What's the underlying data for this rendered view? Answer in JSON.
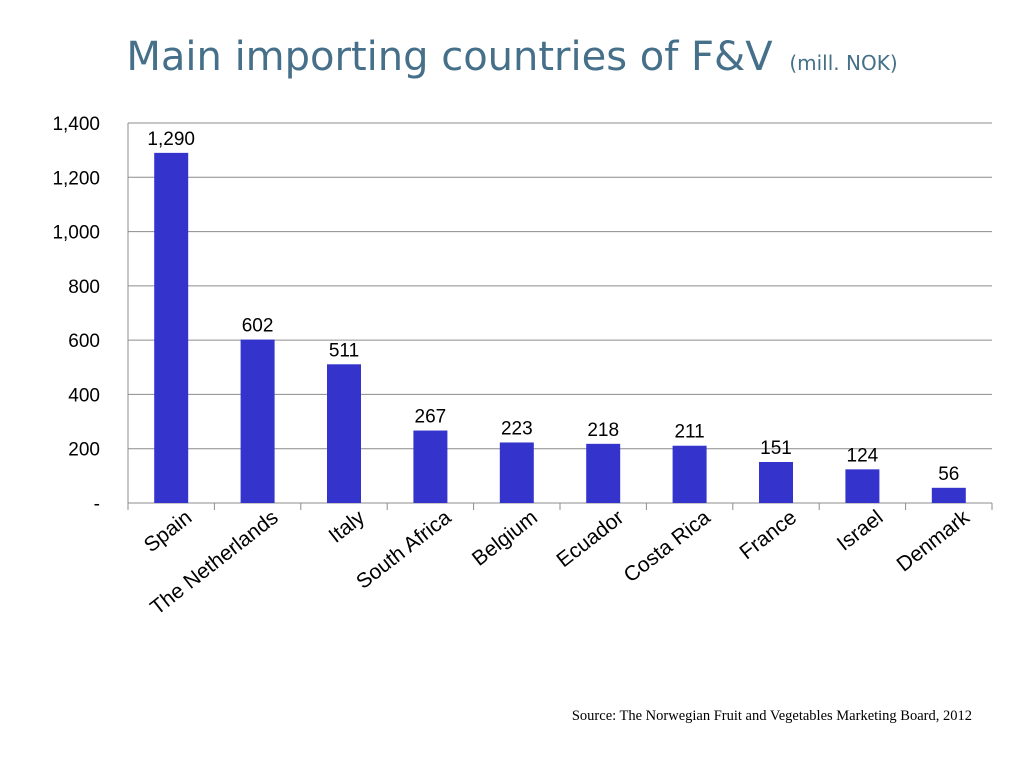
{
  "slide": {
    "title": "Main importing countries of F&V",
    "subtitle": "(mill. NOK)",
    "source": "Source: The Norwegian Fruit and Vegetables Marketing Board, 2012"
  },
  "chart_data": {
    "type": "bar",
    "title": "Main importing countries of F&V",
    "subtitle": "(mill. NOK)",
    "xlabel": "",
    "ylabel": "",
    "categories": [
      "Spain",
      "The Netherlands",
      "Italy",
      "South Africa",
      "Belgium",
      "Ecuador",
      "Costa Rica",
      "France",
      "Israel",
      "Denmark"
    ],
    "values": [
      1290,
      602,
      511,
      267,
      223,
      218,
      211,
      151,
      124,
      56
    ],
    "data_labels": [
      "1,290",
      "602",
      "511",
      "267",
      "223",
      "218",
      "211",
      "151",
      "124",
      "56"
    ],
    "ylim": [
      0,
      1400
    ],
    "yticks": [
      0,
      200,
      400,
      600,
      800,
      1000,
      1200,
      1400
    ],
    "ytick_labels": [
      "-",
      "200",
      "400",
      "600",
      "800",
      "1,000",
      "1,200",
      "1,400"
    ],
    "bar_color": "#3434CC",
    "grid": true,
    "legend": "none"
  }
}
